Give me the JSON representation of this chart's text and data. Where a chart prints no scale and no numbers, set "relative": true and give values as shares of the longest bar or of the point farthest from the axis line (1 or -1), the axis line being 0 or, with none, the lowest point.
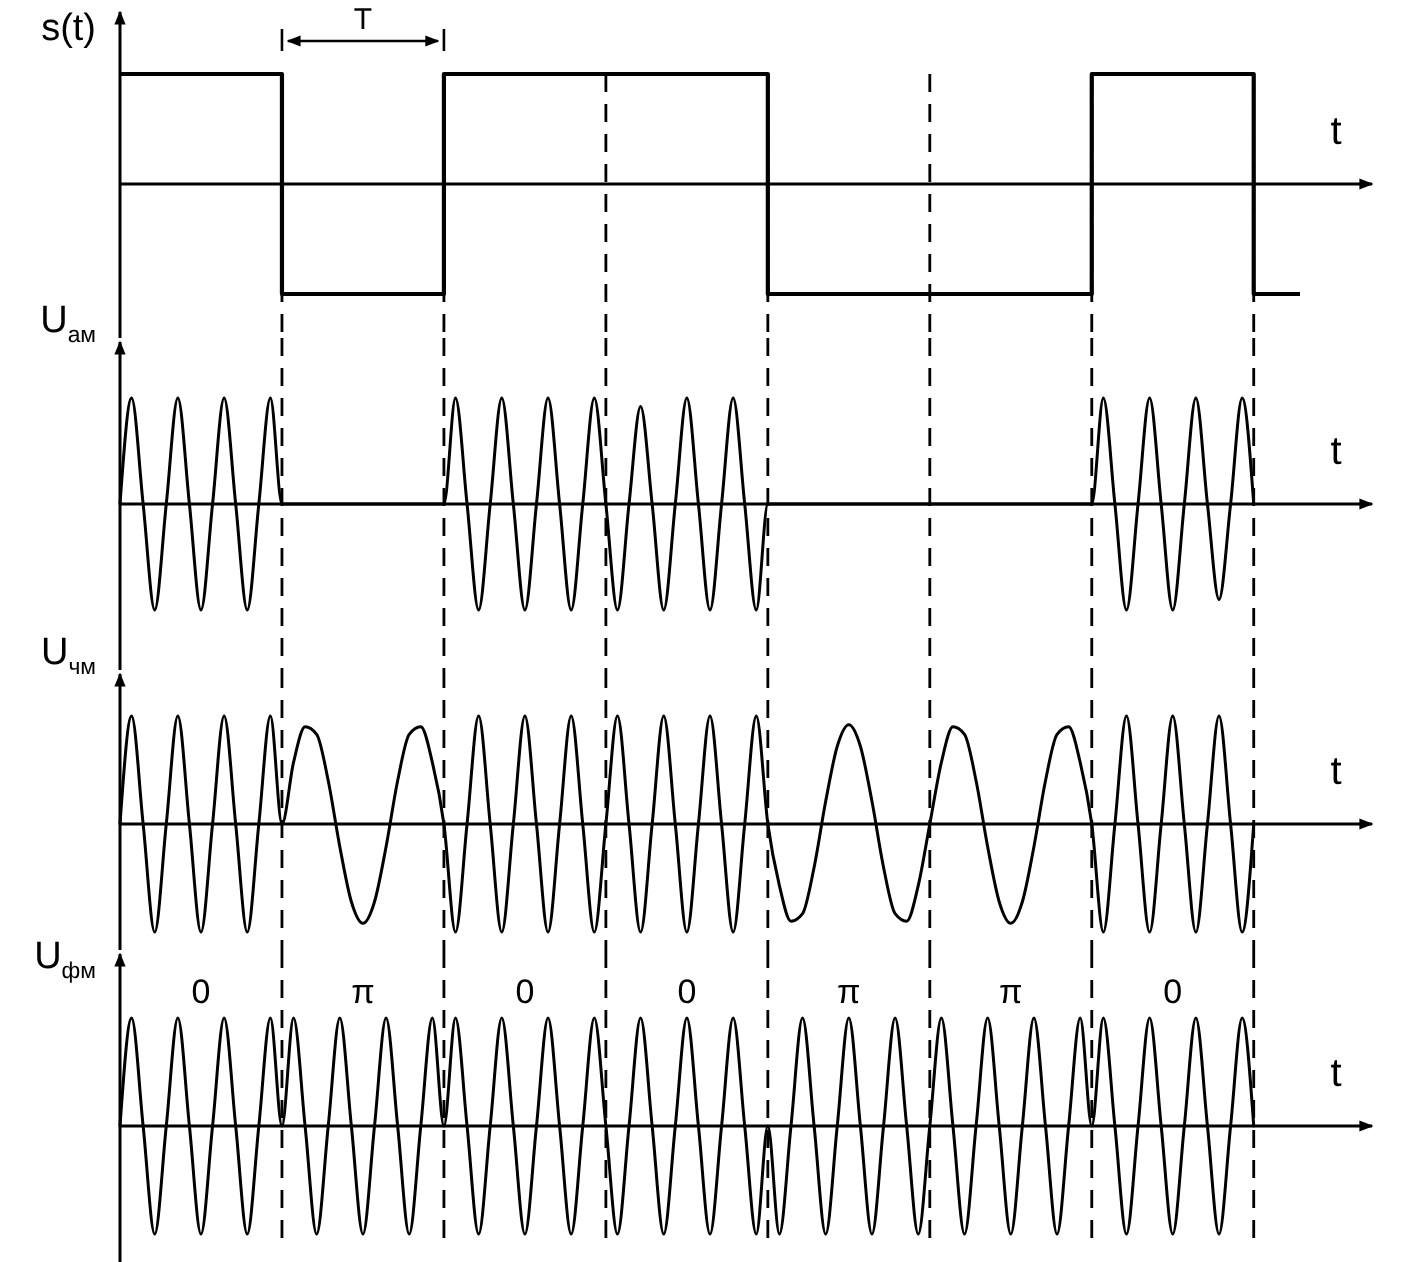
{
  "chart_data": [
    {
      "type": "step",
      "relative": true,
      "ylabel": "s(t)",
      "xlabel": "t",
      "color": "#000000",
      "grid": "x",
      "categories": [
        null,
        null,
        null,
        null,
        null,
        null,
        null,
        null,
        null,
        null,
        null,
        null,
        null,
        null,
        null,
        null,
        null,
        null,
        null,
        null,
        null,
        null,
        null,
        null,
        null,
        null,
        null,
        null,
        null,
        null,
        null,
        null,
        null,
        null,
        null,
        null,
        null,
        null,
        null,
        null,
        null,
        null,
        null,
        null,
        null,
        null,
        null,
        null,
        null,
        null,
        null,
        null,
        null,
        null,
        null,
        null,
        null,
        null,
        null,
        null,
        null,
        null,
        null,
        null,
        null,
        null,
        null,
        null,
        null,
        null,
        null,
        null,
        null,
        null,
        null,
        null,
        null,
        null,
        null,
        null,
        null,
        null,
        null,
        null,
        null,
        null,
        null,
        null,
        null,
        null,
        null,
        null,
        null,
        null,
        null,
        null,
        null,
        null,
        null,
        null,
        null,
        null,
        null
      ],
      "values": [
        1,
        1,
        1,
        1,
        1,
        1,
        1,
        1,
        1,
        1,
        1,
        1,
        1,
        1,
        -1,
        -1,
        -1,
        -1,
        -1,
        -1,
        -1,
        -1,
        -1,
        -1,
        -1,
        -1,
        -1,
        -1,
        1,
        1,
        1,
        1,
        1,
        1,
        1,
        1,
        1,
        1,
        1,
        1,
        1,
        1,
        1,
        1,
        1,
        1,
        1,
        1,
        1,
        1,
        1,
        1,
        1,
        1,
        1,
        1,
        -1,
        -1,
        -1,
        -1,
        -1,
        -1,
        -1,
        -1,
        -1,
        -1,
        -1,
        -1,
        -1,
        -1,
        -1,
        -1,
        -1,
        -1,
        -1,
        -1,
        -1,
        -1,
        -1,
        -1,
        -1,
        -1,
        -1,
        -1,
        1,
        1,
        1,
        1,
        1,
        1,
        1,
        1,
        1,
        1,
        1,
        1,
        1,
        1,
        -1,
        -1,
        -1,
        -1,
        -1
      ],
      "annotations": [
        "T"
      ]
    },
    {
      "type": "line",
      "relative": true,
      "ylabel": "U$_{ам}$",
      "xlabel": "t",
      "color": "#000000",
      "grid": "x",
      "categories": [
        null,
        null,
        null,
        null,
        null,
        null,
        null,
        null,
        null,
        null,
        null,
        null,
        null,
        null,
        null,
        null,
        null,
        null,
        null,
        null,
        null,
        null,
        null,
        null,
        null,
        null,
        null,
        null,
        null,
        null,
        null,
        null,
        null,
        null,
        null,
        null,
        null,
        null,
        null,
        null,
        null,
        null,
        null,
        null,
        null,
        null,
        null,
        null,
        null,
        null,
        null,
        null,
        null,
        null,
        null,
        null,
        null,
        null,
        null,
        null,
        null,
        null,
        null,
        null,
        null,
        null,
        null,
        null,
        null,
        null,
        null,
        null,
        null,
        null,
        null,
        null,
        null,
        null,
        null,
        null,
        null,
        null,
        null,
        null,
        null,
        null,
        null,
        null,
        null,
        null,
        null,
        null,
        null,
        null,
        null,
        null,
        null,
        null,
        null,
        null,
        null,
        null,
        null
      ],
      "values": [
        0,
        1,
        0,
        -1,
        0,
        1,
        0,
        -1,
        0,
        1,
        0,
        -1,
        0,
        1,
        0,
        0,
        0,
        0,
        0,
        0,
        0,
        0,
        0,
        0,
        0,
        0,
        0,
        0,
        0,
        1,
        0,
        -1,
        0,
        1,
        0,
        -1,
        0,
        1,
        0,
        -1,
        0,
        1,
        0,
        -1,
        0,
        0.92,
        0,
        -1,
        0,
        1,
        0,
        -1,
        0,
        1,
        0,
        -1,
        0,
        0,
        0,
        0,
        0,
        0,
        0,
        0,
        0,
        0,
        0,
        0,
        0,
        0,
        0,
        0,
        0,
        0,
        0,
        0,
        0,
        0,
        0,
        0,
        0,
        0,
        0,
        0,
        0,
        1,
        0,
        -1,
        0,
        1,
        0,
        -1,
        0,
        1,
        0,
        -0.9,
        0,
        1,
        0,
        null,
        null,
        null,
        null
      ]
    },
    {
      "type": "line",
      "relative": true,
      "ylabel": "U$_{чм}$",
      "xlabel": "t",
      "color": "#000000",
      "grid": "x",
      "categories": [
        null,
        null,
        null,
        null,
        null,
        null,
        null,
        null,
        null,
        null,
        null,
        null,
        null,
        null,
        null,
        null,
        null,
        null,
        null,
        null,
        null,
        null,
        null,
        null,
        null,
        null,
        null,
        null,
        null,
        null,
        null,
        null,
        null,
        null,
        null,
        null,
        null,
        null,
        null,
        null,
        null,
        null,
        null,
        null,
        null,
        null,
        null,
        null,
        null,
        null,
        null,
        null,
        null,
        null,
        null,
        null,
        null,
        null,
        null,
        null,
        null,
        null,
        null,
        null,
        null,
        null,
        null,
        null,
        null,
        null,
        null,
        null,
        null,
        null,
        null,
        null,
        null,
        null,
        null,
        null,
        null,
        null,
        null,
        null,
        null,
        null,
        null,
        null,
        null,
        null,
        null,
        null,
        null,
        null,
        null,
        null,
        null,
        null,
        null,
        null,
        null,
        null,
        null
      ],
      "values": [
        0,
        1,
        0,
        -1,
        0,
        1,
        0,
        -1,
        0,
        1,
        0,
        -1,
        0,
        1,
        0,
        0.57,
        0.9,
        0.83,
        0.4,
        -0.21,
        -0.72,
        -0.92,
        -0.72,
        -0.21,
        0.4,
        0.83,
        0.9,
        0.57,
        0,
        -1,
        0,
        1,
        0,
        -1,
        0,
        1,
        0,
        -1,
        0,
        1,
        0,
        -1,
        0,
        1,
        0,
        -1,
        0,
        1,
        0,
        -1,
        0,
        1,
        0,
        -1,
        0,
        1,
        0,
        -0.57,
        -0.9,
        -0.83,
        -0.4,
        0.21,
        0.72,
        0.92,
        0.72,
        0.21,
        -0.4,
        -0.83,
        -0.9,
        -0.57,
        0,
        0.57,
        0.9,
        0.83,
        0.4,
        -0.21,
        -0.72,
        -0.92,
        -0.72,
        -0.21,
        0.4,
        0.83,
        0.9,
        0.57,
        0,
        -1,
        0,
        1,
        0,
        -1,
        0,
        1,
        0,
        -1,
        0,
        1,
        0,
        -1,
        0,
        null,
        null,
        null,
        null
      ]
    },
    {
      "type": "line",
      "relative": true,
      "ylabel": "U$_{фм}$",
      "xlabel": "t",
      "color": "#000000",
      "grid": "x",
      "categories": [
        null,
        null,
        null,
        null,
        null,
        null,
        null,
        null,
        null,
        null,
        null,
        null,
        null,
        null,
        null,
        null,
        null,
        null,
        null,
        null,
        null,
        null,
        null,
        null,
        null,
        null,
        null,
        null,
        null,
        null,
        null,
        null,
        null,
        null,
        null,
        null,
        null,
        null,
        null,
        null,
        null,
        null,
        null,
        null,
        null,
        null,
        null,
        null,
        null,
        null,
        null,
        null,
        null,
        null,
        null,
        null,
        null,
        null,
        null,
        null,
        null,
        null,
        null,
        null,
        null,
        null,
        null,
        null,
        null,
        null,
        null,
        null,
        null,
        null,
        null,
        null,
        null,
        null,
        null,
        null,
        null,
        null,
        null,
        null,
        null,
        null,
        null,
        null,
        null,
        null,
        null,
        null,
        null,
        null,
        null,
        null,
        null,
        null,
        null,
        null,
        null,
        null,
        null
      ],
      "values": [
        0,
        1,
        0,
        -1,
        0,
        1,
        0,
        -1,
        0,
        1,
        0,
        -1,
        0,
        1,
        0,
        1,
        0,
        -1,
        0,
        1,
        0,
        -1,
        0,
        1,
        0,
        -1,
        0,
        1,
        0,
        1,
        0,
        -1,
        0,
        1,
        0,
        -1,
        0,
        1,
        0,
        -1,
        0,
        1,
        0,
        -1,
        0,
        1,
        0,
        -1,
        0,
        1,
        0,
        -1,
        0,
        1,
        0,
        -1,
        0,
        -1,
        0,
        1,
        0,
        -1,
        0,
        1,
        0,
        -1,
        0,
        1,
        0,
        -1,
        0,
        1,
        0,
        -1,
        0,
        1,
        0,
        -1,
        0,
        1,
        0,
        -1,
        0,
        1,
        0,
        1,
        0,
        -1,
        0,
        1,
        0,
        -1,
        0,
        1,
        0,
        -1,
        0,
        1,
        0,
        null,
        null,
        null,
        null
      ],
      "annotations": [
        "0",
        "π",
        "0",
        "0",
        "π",
        "π",
        "0"
      ]
    }
  ]
}
